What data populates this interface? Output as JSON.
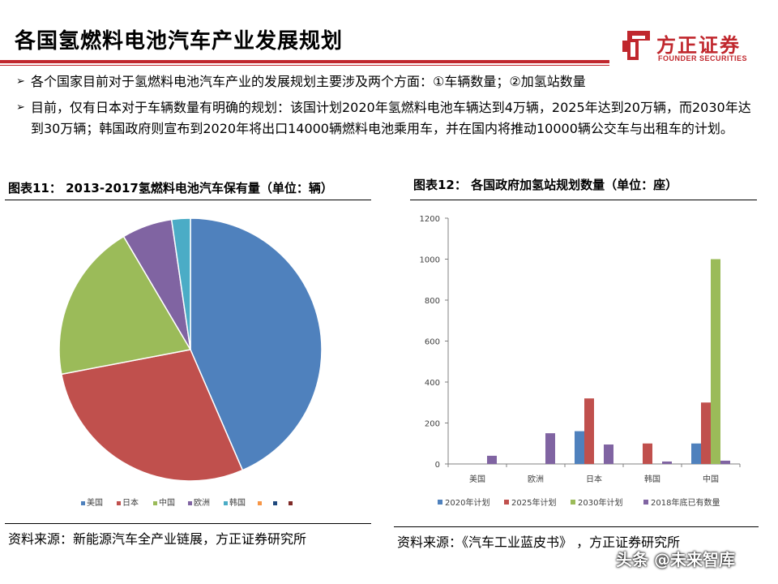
{
  "page": {
    "title": "各国氢燃料电池汽车产业发展规划",
    "logo_name": "方正证券",
    "logo_sub": "FOUNDER SECURITIES",
    "watermark": "头条 @未来智库",
    "bullets": [
      "各个国家目前对于氢燃料电池汽车产业的发展规划主要涉及两个方面：①车辆数量；②加氢站数量",
      "目前，仅有日本对于车辆数量有明确的规划：该国计划2020年氢燃料电池车辆达到4万辆，2025年达到20万辆，而2030年达到30万辆；韩国政府则宣布到2020年将出口14000辆燃料电池乘用车，并在国内将推动10000辆公交车与出租车的计划。"
    ],
    "fig11_title": "图表11： 2013-2017氢燃料电池汽车保有量（单位：辆）",
    "fig12_title": "图表12： 各国政府加氢站规划数量（单位：座）",
    "fig11_source": "资料来源：新能源汽车全产业链展，方正证券研究所",
    "fig12_source": "资料来源：《汽车工业蓝皮书》 ，方正证券研究所"
  },
  "colors": {
    "accent": "#c0272d",
    "blue": "#4f81bd",
    "red": "#c0504d",
    "green": "#9bbb59",
    "purple": "#8064a2",
    "teal": "#4bacc6",
    "orange": "#f79646",
    "navy": "#1f497d",
    "darkred": "#7f2a27"
  },
  "chart_data": [
    {
      "type": "pie",
      "labels": [
        "美国",
        "日本",
        "中国",
        "欧洲",
        "韩国",
        "",
        ""
      ],
      "values": [
        43.5,
        28.5,
        19.5,
        6.2,
        2.3,
        0,
        0
      ],
      "legend_colors": [
        "#4f81bd",
        "#c0504d",
        "#9bbb59",
        "#8064a2",
        "#4bacc6",
        "#f79646",
        "#1f497d",
        "#7f2a27"
      ],
      "legend_labels": [
        "美国",
        "日本",
        "中国",
        "欧洲",
        "韩国",
        "",
        "",
        ""
      ],
      "legend": "bottom"
    },
    {
      "type": "bar",
      "categories": [
        "美国",
        "欧洲",
        "日本",
        "韩国",
        "中国"
      ],
      "series": [
        {
          "name": "2020年计划",
          "color": "#4f81bd",
          "values": [
            null,
            null,
            160,
            null,
            100
          ]
        },
        {
          "name": "2025年计划",
          "color": "#c0504d",
          "values": [
            null,
            null,
            320,
            100,
            300
          ]
        },
        {
          "name": "2030年计划",
          "color": "#9bbb59",
          "values": [
            null,
            null,
            null,
            null,
            1000
          ]
        },
        {
          "name": "2018年底已有数量",
          "color": "#8064a2",
          "values": [
            40,
            150,
            95,
            12,
            16
          ]
        }
      ],
      "ylim": [
        0,
        1200
      ],
      "yticks": [
        0,
        200,
        400,
        600,
        800,
        1000,
        1200
      ],
      "legend": "bottom",
      "grid": false
    }
  ]
}
